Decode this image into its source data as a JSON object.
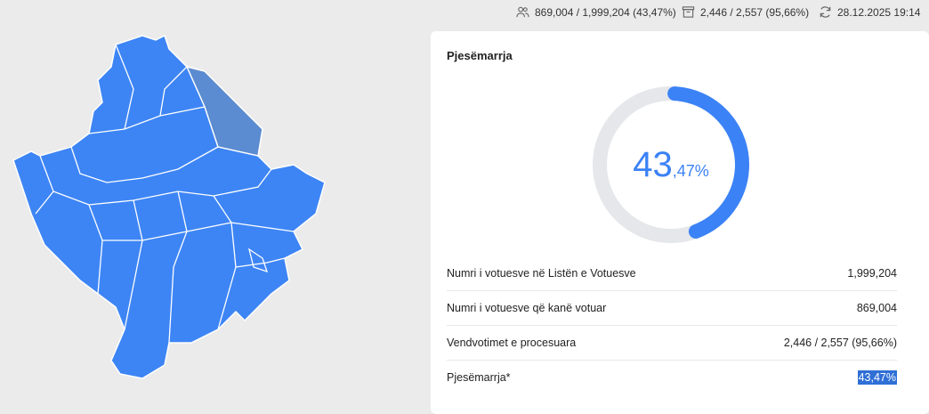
{
  "topbar": {
    "voters": {
      "icon": "users-icon",
      "text": "869,004 / 1,999,204 (43,47%)"
    },
    "stations": {
      "icon": "archive-box-icon",
      "text": "2,446 / 2,557 (95,66%)"
    },
    "updated": {
      "icon": "refresh-icon",
      "text": "28.12.2025 19:14"
    }
  },
  "colors": {
    "map_fill": "#3d85f5",
    "map_highlight": "#5b8bd0",
    "accent": "#3b82f6",
    "ring_track": "#e5e7eb",
    "background": "#ebebeb"
  },
  "card": {
    "title": "Pjesëmarrja",
    "turnout_percent": 43.47,
    "turnout_int": "43",
    "turnout_frac": ",47%",
    "rows": [
      {
        "label": "Numri i votuesve në Listën e Votuesve",
        "value": "1,999,204"
      },
      {
        "label": "Numri i votuesve që kanë votuar",
        "value": "869,004"
      },
      {
        "label": "Vendvotimet e procesuara",
        "value": "2,446 / 2,557 (95,66%)"
      },
      {
        "label": "Pjesëmarrja*",
        "value": "43,47%"
      }
    ]
  }
}
